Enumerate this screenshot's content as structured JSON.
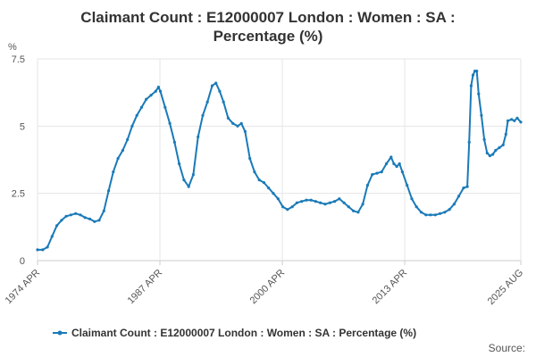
{
  "chart_data": {
    "type": "line",
    "title_line1": "Claimant Count : E12000007 London : Women : SA :",
    "title_line2": "Percentage (%)",
    "ylabel": "%",
    "ylim": [
      0,
      7.5
    ],
    "yticks": [
      0,
      2.5,
      5,
      7.5
    ],
    "ytick_labels": [
      "0",
      "2.5",
      "5",
      "7.5"
    ],
    "xlim": [
      1974.25,
      2025.58
    ],
    "xticks": [
      1974.25,
      1987.25,
      2000.25,
      2013.25,
      2025.58
    ],
    "xtick_labels": [
      "1974 APR",
      "1987 APR",
      "2000 APR",
      "2013 APR",
      "2025 AUG"
    ],
    "grid": true,
    "legend_position": "bottom",
    "color": "#1a7ab8",
    "series": [
      {
        "name": "Claimant Count : E12000007 London : Women : SA : Percentage (%)",
        "points": [
          [
            1974.25,
            0.4
          ],
          [
            1974.8,
            0.4
          ],
          [
            1975.3,
            0.5
          ],
          [
            1975.8,
            0.9
          ],
          [
            1976.3,
            1.3
          ],
          [
            1976.8,
            1.5
          ],
          [
            1977.3,
            1.65
          ],
          [
            1977.8,
            1.7
          ],
          [
            1978.3,
            1.75
          ],
          [
            1978.8,
            1.7
          ],
          [
            1979.3,
            1.6
          ],
          [
            1979.8,
            1.55
          ],
          [
            1980.3,
            1.45
          ],
          [
            1980.8,
            1.5
          ],
          [
            1981.3,
            1.85
          ],
          [
            1981.8,
            2.6
          ],
          [
            1982.3,
            3.3
          ],
          [
            1982.8,
            3.8
          ],
          [
            1983.3,
            4.1
          ],
          [
            1983.8,
            4.5
          ],
          [
            1984.3,
            5.0
          ],
          [
            1984.8,
            5.4
          ],
          [
            1985.3,
            5.7
          ],
          [
            1985.8,
            6.0
          ],
          [
            1986.3,
            6.15
          ],
          [
            1986.8,
            6.3
          ],
          [
            1987.1,
            6.45
          ],
          [
            1987.3,
            6.3
          ],
          [
            1987.8,
            5.7
          ],
          [
            1988.3,
            5.1
          ],
          [
            1988.8,
            4.4
          ],
          [
            1989.3,
            3.6
          ],
          [
            1989.8,
            3.0
          ],
          [
            1990.3,
            2.75
          ],
          [
            1990.8,
            3.2
          ],
          [
            1991.3,
            4.6
          ],
          [
            1991.8,
            5.4
          ],
          [
            1992.3,
            5.9
          ],
          [
            1992.8,
            6.5
          ],
          [
            1993.2,
            6.6
          ],
          [
            1993.6,
            6.3
          ],
          [
            1994.0,
            5.9
          ],
          [
            1994.5,
            5.3
          ],
          [
            1995.0,
            5.1
          ],
          [
            1995.5,
            5.0
          ],
          [
            1995.9,
            5.1
          ],
          [
            1996.3,
            4.8
          ],
          [
            1996.8,
            3.8
          ],
          [
            1997.3,
            3.3
          ],
          [
            1997.8,
            3.0
          ],
          [
            1998.3,
            2.9
          ],
          [
            1998.8,
            2.7
          ],
          [
            1999.3,
            2.5
          ],
          [
            1999.8,
            2.3
          ],
          [
            2000.3,
            2.0
          ],
          [
            2000.8,
            1.9
          ],
          [
            2001.3,
            2.0
          ],
          [
            2001.8,
            2.15
          ],
          [
            2002.3,
            2.2
          ],
          [
            2002.8,
            2.25
          ],
          [
            2003.3,
            2.25
          ],
          [
            2003.8,
            2.2
          ],
          [
            2004.3,
            2.15
          ],
          [
            2004.8,
            2.1
          ],
          [
            2005.3,
            2.15
          ],
          [
            2005.8,
            2.2
          ],
          [
            2006.3,
            2.3
          ],
          [
            2006.8,
            2.15
          ],
          [
            2007.3,
            2.0
          ],
          [
            2007.8,
            1.85
          ],
          [
            2008.3,
            1.8
          ],
          [
            2008.8,
            2.1
          ],
          [
            2009.3,
            2.8
          ],
          [
            2009.8,
            3.2
          ],
          [
            2010.3,
            3.25
          ],
          [
            2010.8,
            3.3
          ],
          [
            2011.3,
            3.6
          ],
          [
            2011.8,
            3.85
          ],
          [
            2012.1,
            3.6
          ],
          [
            2012.4,
            3.5
          ],
          [
            2012.7,
            3.6
          ],
          [
            2013.0,
            3.3
          ],
          [
            2013.5,
            2.8
          ],
          [
            2014.0,
            2.3
          ],
          [
            2014.5,
            2.0
          ],
          [
            2015.0,
            1.8
          ],
          [
            2015.5,
            1.7
          ],
          [
            2016.0,
            1.7
          ],
          [
            2016.5,
            1.7
          ],
          [
            2017.0,
            1.75
          ],
          [
            2017.5,
            1.8
          ],
          [
            2018.0,
            1.9
          ],
          [
            2018.5,
            2.1
          ],
          [
            2019.0,
            2.4
          ],
          [
            2019.5,
            2.7
          ],
          [
            2019.9,
            2.75
          ],
          [
            2020.1,
            4.4
          ],
          [
            2020.3,
            6.5
          ],
          [
            2020.5,
            6.9
          ],
          [
            2020.7,
            7.05
          ],
          [
            2020.9,
            7.05
          ],
          [
            2021.1,
            6.2
          ],
          [
            2021.4,
            5.4
          ],
          [
            2021.7,
            4.5
          ],
          [
            2022.0,
            4.0
          ],
          [
            2022.3,
            3.9
          ],
          [
            2022.6,
            3.95
          ],
          [
            2022.9,
            4.1
          ],
          [
            2023.3,
            4.2
          ],
          [
            2023.7,
            4.3
          ],
          [
            2024.0,
            4.7
          ],
          [
            2024.2,
            5.2
          ],
          [
            2024.6,
            5.25
          ],
          [
            2024.9,
            5.2
          ],
          [
            2025.2,
            5.3
          ],
          [
            2025.58,
            5.15
          ]
        ]
      }
    ]
  },
  "footer": {
    "source_label": "Source:"
  }
}
